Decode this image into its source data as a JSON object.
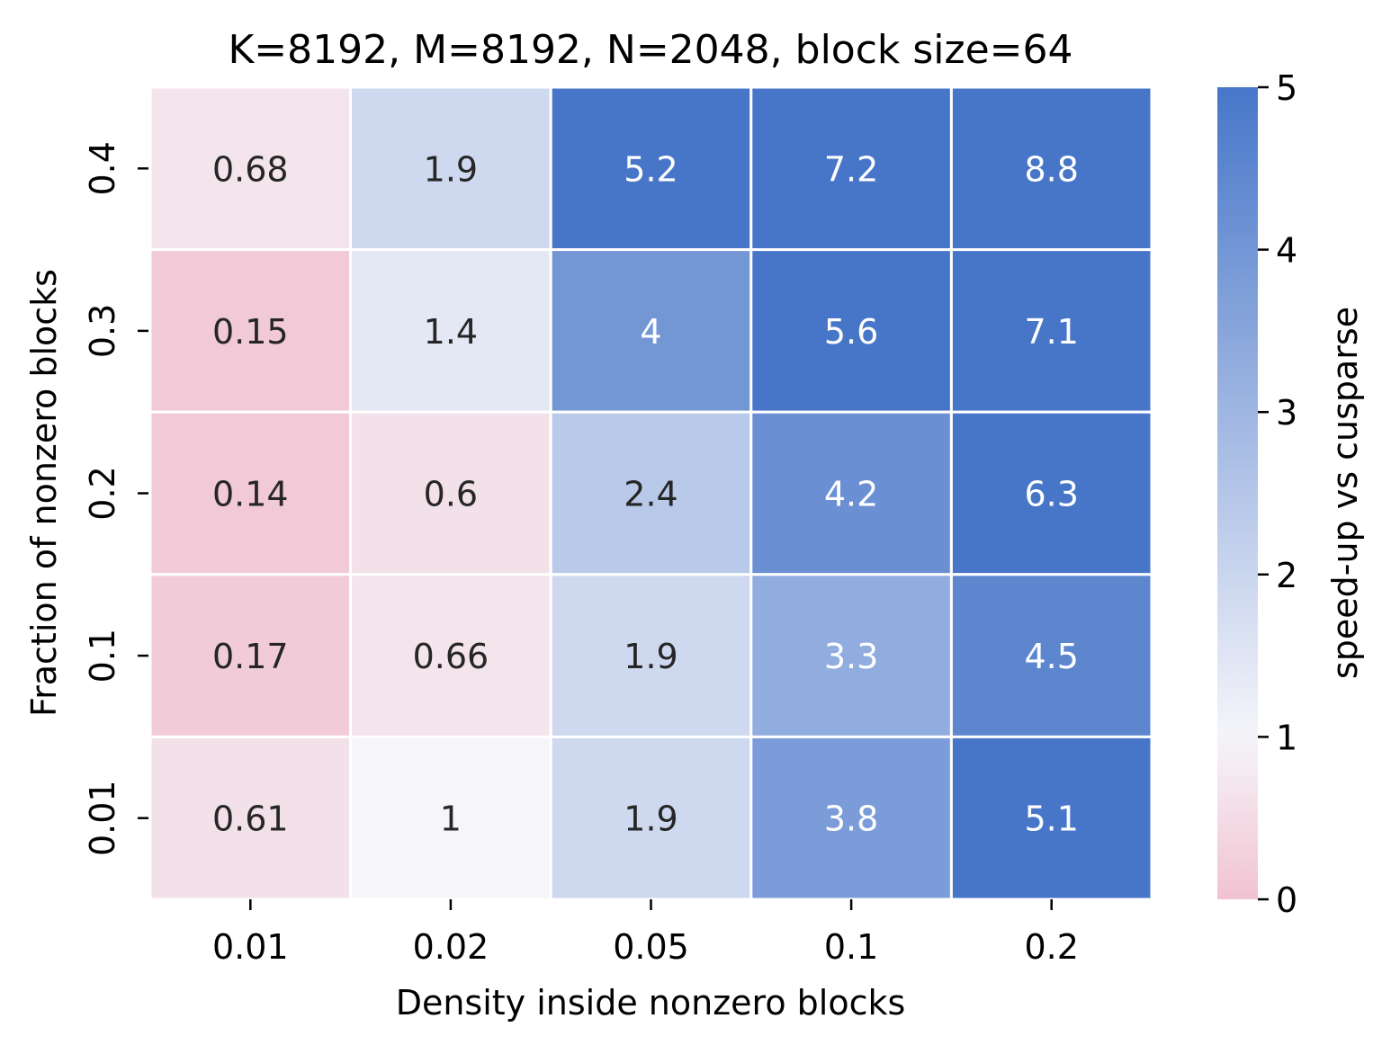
{
  "chart_data": {
    "type": "heatmap",
    "title": "K=8192, M=8192, N=2048, block size=64",
    "xlabel": "Density inside nonzero blocks",
    "ylabel": "Fraction of nonzero blocks",
    "x_categories": [
      "0.01",
      "0.02",
      "0.05",
      "0.1",
      "0.2"
    ],
    "y_categories": [
      "0.4",
      "0.3",
      "0.2",
      "0.1",
      "0.01"
    ],
    "values": [
      [
        0.68,
        1.9,
        5.2,
        7.2,
        8.8
      ],
      [
        0.15,
        1.4,
        4,
        5.6,
        7.1
      ],
      [
        0.14,
        0.6,
        2.4,
        4.2,
        6.3
      ],
      [
        0.17,
        0.66,
        1.9,
        3.3,
        4.5
      ],
      [
        0.61,
        1,
        1.9,
        3.8,
        5.1
      ]
    ],
    "value_labels": [
      [
        "0.68",
        "1.9",
        "5.2",
        "7.2",
        "8.8"
      ],
      [
        "0.15",
        "1.4",
        "4",
        "5.6",
        "7.1"
      ],
      [
        "0.14",
        "0.6",
        "2.4",
        "4.2",
        "6.3"
      ],
      [
        "0.17",
        "0.66",
        "1.9",
        "3.3",
        "4.5"
      ],
      [
        "0.61",
        "1",
        "1.9",
        "3.8",
        "5.1"
      ]
    ],
    "colorbar": {
      "label": "speed-up vs cusparse",
      "range": [
        0,
        5
      ],
      "center": 1,
      "ticks": [
        "0",
        "1",
        "2",
        "3",
        "4",
        "5"
      ],
      "colors": {
        "low": "#f1c2d1",
        "center": "#f5f5fa",
        "high": "#4776c9"
      }
    },
    "annotation_colors": {
      "dark": "#262626",
      "light": "#ffffff"
    },
    "grid_line_color": "#ffffff"
  }
}
